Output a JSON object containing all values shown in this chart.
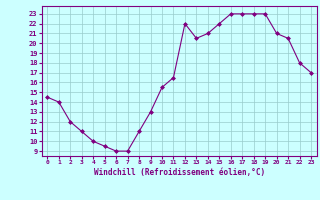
{
  "x": [
    0,
    1,
    2,
    3,
    4,
    5,
    6,
    7,
    8,
    9,
    10,
    11,
    12,
    13,
    14,
    15,
    16,
    17,
    18,
    19,
    20,
    21,
    22,
    23
  ],
  "y": [
    14.5,
    14,
    12,
    11,
    10,
    9.5,
    9,
    9,
    11,
    13,
    15.5,
    16.5,
    22,
    20.5,
    21,
    22,
    23,
    23,
    23,
    23,
    21,
    20.5,
    18,
    17
  ],
  "line_color": "#800080",
  "marker_color": "#800080",
  "bg_color": "#ccffff",
  "grid_color": "#99cccc",
  "xlabel": "Windchill (Refroidissement éolien,°C)",
  "xlabel_color": "#800080",
  "tick_color": "#800080",
  "spine_color": "#800080",
  "ylim": [
    8.5,
    23.8
  ],
  "xlim": [
    -0.5,
    23.5
  ],
  "yticks": [
    9,
    10,
    11,
    12,
    13,
    14,
    15,
    16,
    17,
    18,
    19,
    20,
    21,
    22,
    23
  ],
  "xticks": [
    0,
    1,
    2,
    3,
    4,
    5,
    6,
    7,
    8,
    9,
    10,
    11,
    12,
    13,
    14,
    15,
    16,
    17,
    18,
    19,
    20,
    21,
    22,
    23
  ],
  "xtick_labels": [
    "0",
    "1",
    "2",
    "3",
    "4",
    "5",
    "6",
    "7",
    "8",
    "9",
    "10",
    "11",
    "12",
    "13",
    "14",
    "15",
    "16",
    "17",
    "18",
    "19",
    "20",
    "21",
    "22",
    "23"
  ]
}
